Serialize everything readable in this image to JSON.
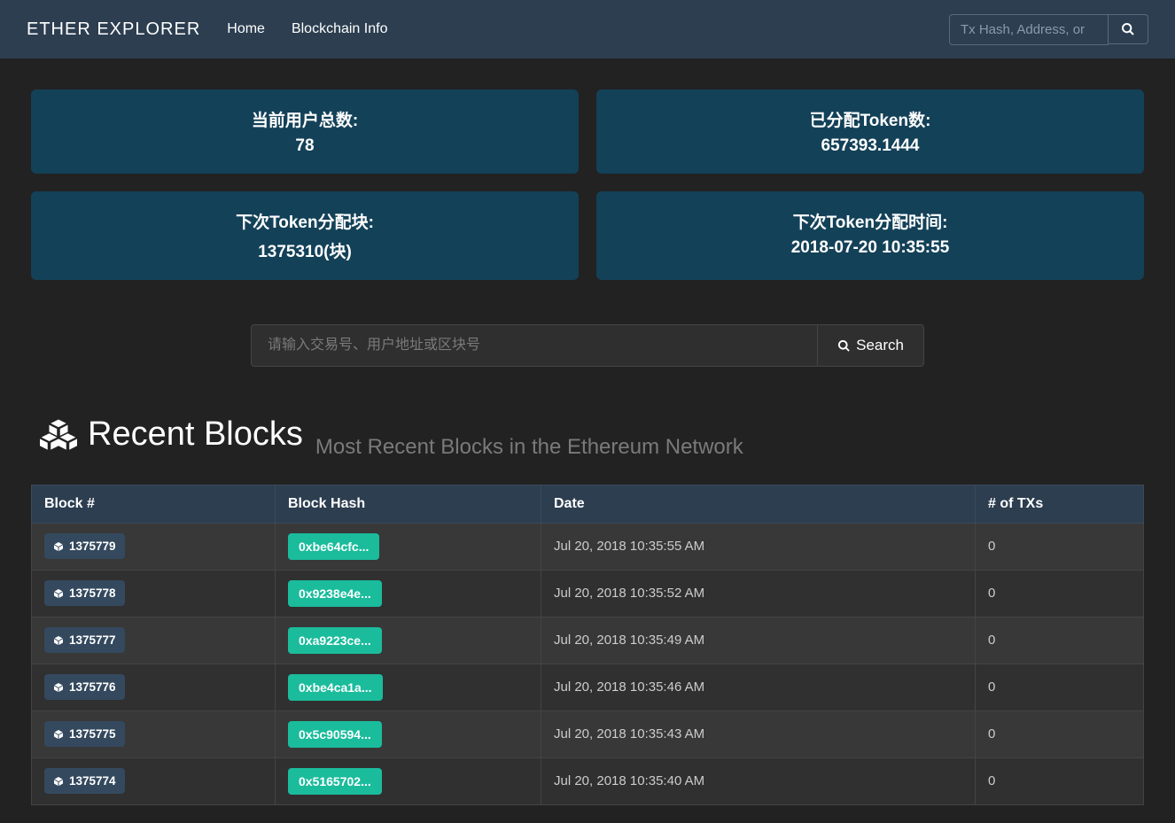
{
  "nav": {
    "brand": "ETHER EXPLORER",
    "home": "Home",
    "info": "Blockchain Info",
    "search_placeholder": "Tx Hash, Address, or"
  },
  "stats": {
    "users_label": "当前用户总数:",
    "users_value": "78",
    "tokens_label": "已分配Token数:",
    "tokens_value": "657393.1444",
    "next_block_label": "下次Token分配块:",
    "next_block_value": "1375310(块)",
    "next_time_label": "下次Token分配时间:",
    "next_time_value": "2018-07-20 10:35:55"
  },
  "main_search": {
    "placeholder": "请输入交易号、用户地址或区块号",
    "button": "Search"
  },
  "section": {
    "title": "Recent Blocks",
    "subtitle": "Most Recent Blocks in the Ethereum Network"
  },
  "table": {
    "headers": {
      "block": "Block #",
      "hash": "Block Hash",
      "date": "Date",
      "txs": "# of TXs"
    },
    "rows": [
      {
        "block": "1375779",
        "hash": "0xbe64cfc...",
        "date": "Jul 20, 2018 10:35:55 AM",
        "txs": "0"
      },
      {
        "block": "1375778",
        "hash": "0x9238e4e...",
        "date": "Jul 20, 2018 10:35:52 AM",
        "txs": "0"
      },
      {
        "block": "1375777",
        "hash": "0xa9223ce...",
        "date": "Jul 20, 2018 10:35:49 AM",
        "txs": "0"
      },
      {
        "block": "1375776",
        "hash": "0xbe4ca1a...",
        "date": "Jul 20, 2018 10:35:46 AM",
        "txs": "0"
      },
      {
        "block": "1375775",
        "hash": "0x5c90594...",
        "date": "Jul 20, 2018 10:35:43 AM",
        "txs": "0"
      },
      {
        "block": "1375774",
        "hash": "0x5165702...",
        "date": "Jul 20, 2018 10:35:40 AM",
        "txs": "0"
      }
    ]
  },
  "colors": {
    "navbar_bg": "#2c3e50",
    "body_bg": "#222222",
    "card_bg": "#134158",
    "badge_block_bg": "#34495e",
    "badge_hash_bg": "#1abc9c"
  }
}
